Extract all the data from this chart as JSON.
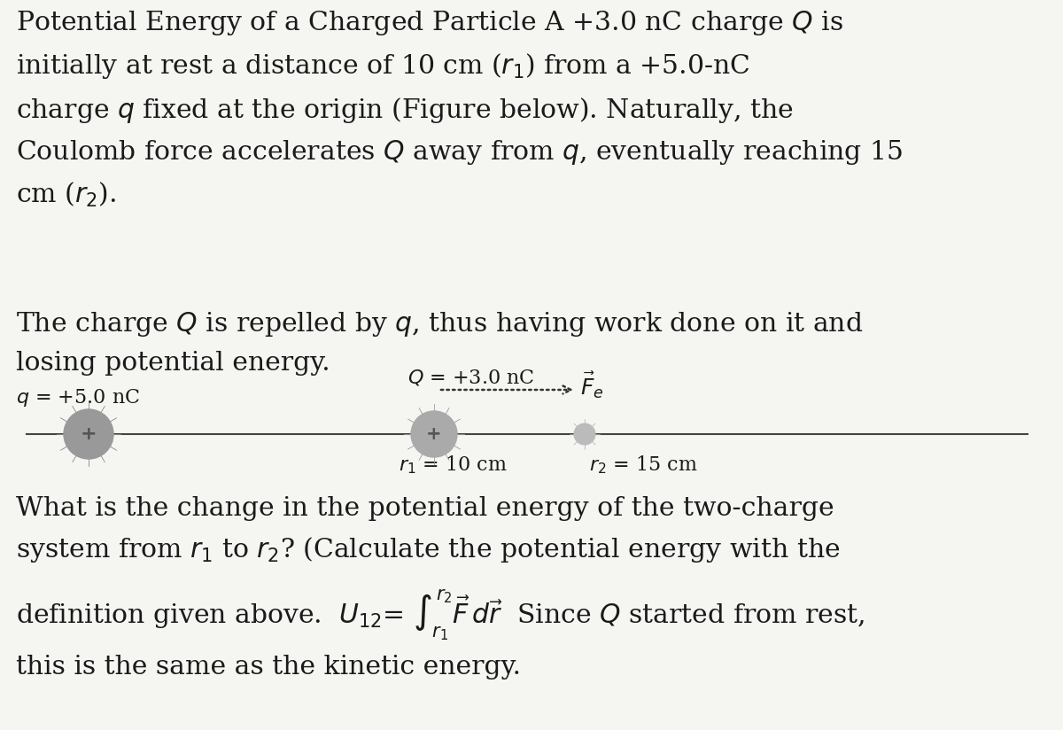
{
  "bg_color": "#f5f5f2",
  "text_color": "#1a1a1a",
  "fig_width": 12.0,
  "fig_height": 8.24,
  "label_q": "$q$ = +5.0 nC",
  "label_Q": "$Q$ = +3.0 nC",
  "label_Fe": "$\\vec{F}_e$",
  "label_r1": "$r_1$ = 10 cm",
  "label_r2": "$r_2$ = 15 cm",
  "line_color": "#444444",
  "charge_color_q": "#999999",
  "charge_color_Q": "#aaaaaa",
  "charge_color_r2": "#bbbbbb",
  "arrow_color": "#333333",
  "font_size_main": 21.5,
  "font_size_diagram": 16.0
}
